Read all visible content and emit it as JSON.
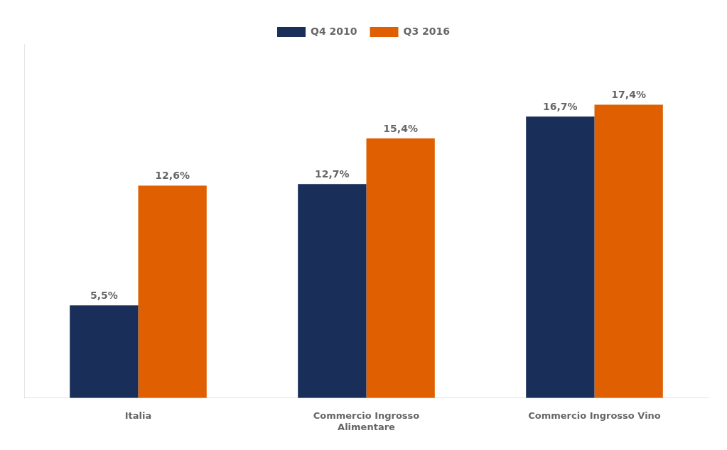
{
  "chart_data": {
    "type": "bar",
    "categories": [
      "Italia",
      "Commercio Ingrosso\nAlimentare",
      "Commercio Ingrosso Vino"
    ],
    "series": [
      {
        "name": "Q4 2010",
        "color": "#1a2e5a",
        "values": [
          5.5,
          12.7,
          16.7
        ],
        "value_labels": [
          "5,5%",
          "12,7%",
          "16,7%"
        ]
      },
      {
        "name": "Q3 2016",
        "color": "#e05f00",
        "values": [
          12.6,
          15.4,
          17.4
        ],
        "value_labels": [
          "12,6%",
          "15,4%",
          "17,4%"
        ]
      }
    ],
    "ylim": [
      0,
      21
    ],
    "tick_labels": "x",
    "data_labels": true,
    "legend": "top",
    "grid": false
  }
}
